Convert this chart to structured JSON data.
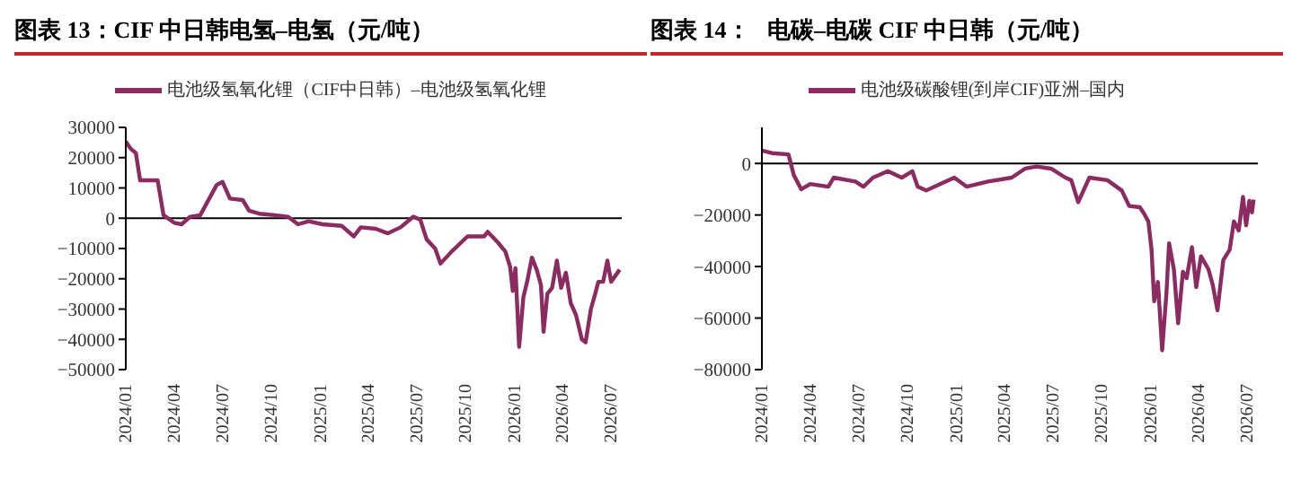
{
  "chart_data": [
    {
      "type": "line",
      "title": "图表 13：CIF 中日韩电氢–电氢（元/吨）",
      "legend": "top",
      "grid": false,
      "marker": "none",
      "line_style": "solid",
      "xlim": [
        "2024-01-01",
        "2026-07-22"
      ],
      "xticks": [
        {
          "value": "2024-01",
          "label": "2024/01"
        },
        {
          "value": "2024-04",
          "label": "2024/04"
        },
        {
          "value": "2024-07",
          "label": "2024/07"
        },
        {
          "value": "2024-10",
          "label": "2024/10"
        },
        {
          "value": "2025-01",
          "label": "2025/01"
        },
        {
          "value": "2025-04",
          "label": "2025/04"
        },
        {
          "value": "2025-07",
          "label": "2025/07"
        },
        {
          "value": "2025-10",
          "label": "2025/10"
        },
        {
          "value": "2026-01",
          "label": "2026/01"
        },
        {
          "value": "2026-04",
          "label": "2026/04"
        },
        {
          "value": "2026-07",
          "label": "2026/07"
        }
      ],
      "ylim": [
        -50000,
        30000
      ],
      "yticks": [
        -50000,
        -40000,
        -30000,
        -20000,
        -10000,
        0,
        10000,
        20000,
        30000
      ],
      "ref_lines": [
        {
          "axis": "y",
          "value": 0,
          "color": "#000000"
        }
      ],
      "series": [
        {
          "name": "电池级氢氧化锂（CIF中日韩）–电池级氢氧化锂",
          "color": "#8c2b62",
          "x": [
            "2024-01-01",
            "2024-01-10",
            "2024-01-20",
            "2024-01-28",
            "2024-03-01",
            "2024-03-12",
            "2024-04-01",
            "2024-04-15",
            "2024-05-01",
            "2024-05-20",
            "2024-06-20",
            "2024-07-01",
            "2024-07-15",
            "2024-08-08",
            "2024-08-20",
            "2024-09-08",
            "2024-10-08",
            "2024-11-01",
            "2024-11-20",
            "2024-12-10",
            "2025-01-05",
            "2025-02-10",
            "2025-03-05",
            "2025-03-18",
            "2025-04-15",
            "2025-05-08",
            "2025-06-01",
            "2025-06-25",
            "2025-07-08",
            "2025-07-20",
            "2025-08-05",
            "2025-08-15",
            "2025-09-05",
            "2025-10-05",
            "2025-11-05",
            "2025-11-12",
            "2025-12-01",
            "2025-12-15",
            "2025-12-24",
            "2025-12-29",
            "2026-01-03",
            "2026-01-10",
            "2026-01-18",
            "2026-01-25",
            "2026-02-03",
            "2026-02-12",
            "2026-02-20",
            "2026-02-25",
            "2026-03-04",
            "2026-03-13",
            "2026-03-22",
            "2026-03-30",
            "2026-04-08",
            "2026-04-17",
            "2026-04-27",
            "2026-05-08",
            "2026-05-15",
            "2026-05-25",
            "2026-06-02",
            "2026-06-08",
            "2026-06-17",
            "2026-06-25",
            "2026-07-02",
            "2026-07-10",
            "2026-07-18"
          ],
          "values": [
            25300,
            23000,
            21500,
            12500,
            12500,
            1000,
            -1500,
            -2000,
            500,
            1000,
            11000,
            12000,
            6500,
            6000,
            2500,
            1500,
            1000,
            500,
            -2000,
            -1000,
            -2000,
            -2500,
            -6000,
            -3000,
            -3500,
            -5000,
            -3000,
            500,
            -500,
            -7000,
            -10000,
            -15000,
            -11000,
            -6000,
            -6000,
            -4500,
            -8000,
            -11000,
            -16000,
            -24000,
            -16500,
            -42500,
            -26000,
            -21000,
            -13000,
            -17000,
            -22000,
            -37500,
            -25000,
            -23000,
            -14000,
            -23000,
            -18000,
            -28000,
            -32000,
            -40000,
            -41000,
            -30000,
            -25000,
            -21000,
            -21000,
            -14000,
            -21000,
            -19000,
            -17000
          ]
        }
      ]
    },
    {
      "type": "line",
      "title": "图表 14：   电碳–电碳 CIF 中日韩（元/吨）",
      "legend": "top",
      "grid": false,
      "marker": "none",
      "line_style": "solid",
      "xlim": [
        "2024-01-01",
        "2026-07-22"
      ],
      "xticks": [
        {
          "value": "2024-01",
          "label": "2024/01"
        },
        {
          "value": "2024-04",
          "label": "2024/04"
        },
        {
          "value": "2024-07",
          "label": "2024/07"
        },
        {
          "value": "2024-10",
          "label": "2024/10"
        },
        {
          "value": "2025-01",
          "label": "2025/01"
        },
        {
          "value": "2025-04",
          "label": "2025/04"
        },
        {
          "value": "2025-07",
          "label": "2025/07"
        },
        {
          "value": "2025-10",
          "label": "2025/10"
        },
        {
          "value": "2026-01",
          "label": "2026/01"
        },
        {
          "value": "2026-04",
          "label": "2026/04"
        },
        {
          "value": "2026-07",
          "label": "2026/07"
        }
      ],
      "ylim": [
        -80000,
        14000
      ],
      "yticks": [
        -80000,
        -60000,
        -40000,
        -20000,
        0
      ],
      "ref_lines": [
        {
          "axis": "y",
          "value": 0,
          "color": "#000000"
        }
      ],
      "series": [
        {
          "name": "电池级碳酸锂(到岸CIF)亚洲–国内",
          "color": "#8c2b62",
          "x": [
            "2024-01-01",
            "2024-01-20",
            "2024-02-20",
            "2024-03-01",
            "2024-03-15",
            "2024-04-01",
            "2024-05-05",
            "2024-05-15",
            "2024-06-25",
            "2024-07-10",
            "2024-07-28",
            "2024-08-25",
            "2024-09-20",
            "2024-10-10",
            "2024-10-20",
            "2024-11-05",
            "2024-12-01",
            "2024-12-28",
            "2025-01-20",
            "2025-03-01",
            "2025-04-15",
            "2025-05-10",
            "2025-06-01",
            "2025-06-28",
            "2025-07-25",
            "2025-08-05",
            "2025-08-18",
            "2025-09-08",
            "2025-10-12",
            "2025-11-08",
            "2025-11-22",
            "2025-12-12",
            "2025-12-20",
            "2025-12-28",
            "2026-01-03",
            "2026-01-08",
            "2026-01-15",
            "2026-01-23",
            "2026-01-31",
            "2026-02-05",
            "2026-02-14",
            "2026-02-22",
            "2026-03-03",
            "2026-03-10",
            "2026-03-20",
            "2026-03-28",
            "2026-04-06",
            "2026-04-20",
            "2026-04-28",
            "2026-05-07",
            "2026-05-18",
            "2026-05-30",
            "2026-06-07",
            "2026-06-16",
            "2026-06-24",
            "2026-06-30",
            "2026-07-06",
            "2026-07-11",
            "2026-07-14"
          ],
          "values": [
            5000,
            4000,
            3500,
            -4500,
            -10000,
            -8000,
            -9000,
            -5500,
            -7000,
            -9000,
            -5500,
            -3000,
            -5500,
            -3000,
            -9000,
            -10500,
            -8000,
            -5500,
            -9000,
            -7000,
            -5500,
            -2000,
            -1200,
            -2000,
            -5500,
            -6500,
            -15000,
            -5500,
            -6500,
            -10500,
            -16500,
            -17000,
            -19500,
            -22500,
            -33500,
            -53500,
            -46000,
            -72500,
            -50500,
            -31000,
            -41000,
            -62000,
            -42000,
            -44500,
            -32500,
            -48000,
            -36000,
            -41000,
            -47000,
            -57000,
            -37500,
            -33500,
            -22500,
            -26000,
            -13000,
            -24000,
            -14500,
            -19000,
            -14000
          ]
        }
      ]
    }
  ]
}
